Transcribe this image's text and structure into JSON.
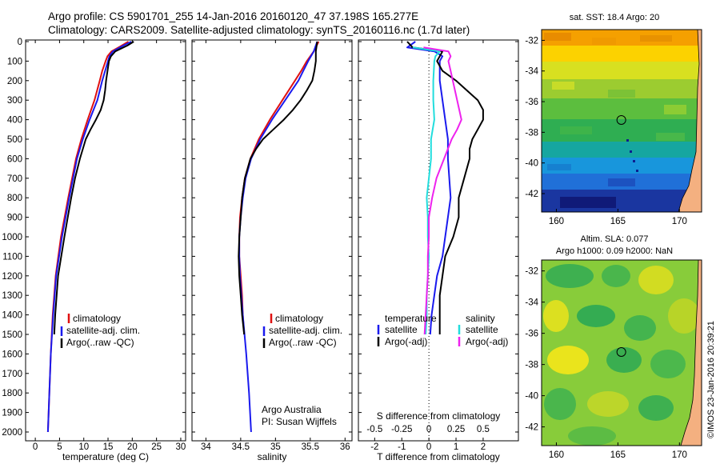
{
  "title_line1": "Argo profile: CS 5901701_255 14-Jan-2016 20160120_47 37.198S 165.277E",
  "title_line2": "Climatology: CARS2009. Satellite-adjusted climatology: synTS_20160116.nc (1.7d later)",
  "depth_ticks": [
    "0",
    "100",
    "200",
    "300",
    "400",
    "500",
    "600",
    "700",
    "800",
    "900",
    "1000",
    "1100",
    "1200",
    "1300",
    "1400",
    "1500",
    "1600",
    "1700",
    "1800",
    "1900",
    "2000"
  ],
  "colors": {
    "climatology": "#e01010",
    "satellite": "#1a1aee",
    "argo": "#000000",
    "cyan": "#22dddd",
    "magenta": "#ee22ee"
  },
  "chart_data": [
    {
      "type": "line",
      "id": "temperature",
      "xlabel": "temperature (deg C)",
      "xticks": [
        "0",
        "5",
        "10",
        "15",
        "20",
        "25",
        "30"
      ],
      "xlim": [
        -2,
        31
      ],
      "ylim": [
        2000,
        0
      ],
      "legend": [
        "climatology",
        "satellite-adj. clim.",
        "Argo(..raw -QC)"
      ],
      "series": [
        {
          "name": "climatology",
          "depth": [
            0,
            25,
            50,
            75,
            100,
            150,
            200,
            300,
            400,
            500,
            600,
            800,
            1000,
            1200,
            1400,
            1600,
            1800,
            2000
          ],
          "values": [
            19.2,
            17.5,
            15.7,
            14.9,
            14.5,
            13.8,
            13.3,
            12.2,
            10.8,
            9.5,
            8.4,
            6.8,
            5.3,
            4.2,
            3.6,
            3.2,
            2.9,
            2.6
          ]
        },
        {
          "name": "satellite-adj. clim.",
          "depth": [
            0,
            25,
            50,
            75,
            100,
            150,
            200,
            300,
            400,
            500,
            600,
            800,
            1000,
            1200,
            1400,
            1600,
            1800,
            2000
          ],
          "values": [
            19.8,
            17.8,
            16.0,
            15.3,
            15.0,
            14.4,
            13.8,
            12.8,
            11.2,
            9.8,
            8.6,
            7.0,
            5.5,
            4.3,
            3.7,
            3.2,
            2.9,
            2.6
          ]
        },
        {
          "name": "Argo(..raw -QC)",
          "depth": [
            0,
            20,
            50,
            75,
            100,
            150,
            200,
            250,
            300,
            350,
            400,
            450,
            500,
            600,
            700,
            800,
            900,
            1000,
            1200,
            1400,
            1500
          ],
          "values": [
            20.3,
            19.0,
            16.5,
            15.6,
            15.2,
            14.9,
            14.6,
            14.4,
            14.1,
            13.5,
            12.5,
            11.4,
            10.4,
            9.2,
            8.2,
            7.4,
            6.7,
            6.0,
            4.7,
            4.1,
            3.9
          ]
        }
      ]
    },
    {
      "type": "line",
      "id": "salinity",
      "xlabel": "salinity",
      "xticks": [
        "34",
        "34.5",
        "35",
        "35.5",
        "36"
      ],
      "xlim": [
        33.8,
        36.1
      ],
      "ylim": [
        2000,
        0
      ],
      "legend": [
        "climatology",
        "satellite-adj. clim.",
        "Argo(..raw -QC)"
      ],
      "annotation": [
        "Argo Australia",
        "PI: Susan Wijffels"
      ],
      "series": [
        {
          "name": "climatology",
          "depth": [
            0,
            50,
            100,
            150,
            200,
            300,
            400,
            500,
            600,
            700,
            800,
            900,
            1000,
            1100,
            1200,
            1300,
            1400,
            1500
          ],
          "values": [
            35.62,
            35.55,
            35.45,
            35.37,
            35.28,
            35.1,
            34.92,
            34.76,
            34.64,
            34.56,
            34.52,
            34.49,
            34.48,
            34.48,
            34.5,
            34.52,
            34.53,
            34.55
          ]
        },
        {
          "name": "satellite-adj. clim.",
          "depth": [
            0,
            50,
            100,
            150,
            200,
            300,
            400,
            500,
            600,
            700,
            800,
            900,
            1000,
            1100,
            1200,
            1300,
            1400,
            1600,
            1800,
            2000
          ],
          "values": [
            35.6,
            35.55,
            35.47,
            35.4,
            35.33,
            35.14,
            34.95,
            34.78,
            34.65,
            34.57,
            34.53,
            34.5,
            34.48,
            34.48,
            34.49,
            34.51,
            34.53,
            34.58,
            34.62,
            34.65
          ]
        },
        {
          "name": "Argo(..raw -QC)",
          "depth": [
            0,
            50,
            100,
            150,
            200,
            250,
            300,
            350,
            400,
            450,
            500,
            550,
            600,
            700,
            800,
            900,
            1000,
            1100,
            1200,
            1300,
            1400,
            1500
          ],
          "values": [
            35.6,
            35.58,
            35.58,
            35.56,
            35.53,
            35.45,
            35.36,
            35.25,
            35.12,
            34.97,
            34.82,
            34.72,
            34.64,
            34.56,
            34.52,
            34.5,
            34.48,
            34.47,
            34.48,
            34.5,
            34.52,
            34.55
          ]
        }
      ]
    },
    {
      "type": "line",
      "id": "difference",
      "xlabel": "T difference from climatology",
      "xlabel_top": "S difference from climatology",
      "xticks": [
        "-2",
        "-1",
        "0",
        "1",
        "2"
      ],
      "xticks_top": [
        "-0.5",
        "-0.25",
        "0",
        "0.25",
        "0.5"
      ],
      "xlim": [
        -2.6,
        3.3
      ],
      "ylim": [
        2000,
        0
      ],
      "legend_temp_title": "temperature",
      "legend_sal_title": "salinity",
      "legend_temp": [
        "satellite",
        "Argo(-adj)"
      ],
      "legend_sal": [
        "satellite",
        "Argo(-adj)"
      ],
      "series": [
        {
          "name": "T satellite",
          "depth": [
            0,
            30,
            50,
            75,
            100,
            200,
            300,
            400,
            500,
            600,
            800,
            1000,
            1100,
            1200,
            1300,
            1400,
            1500
          ],
          "values": [
            -0.5,
            -0.8,
            0.2,
            0.5,
            0.4,
            0.4,
            0.5,
            0.6,
            0.7,
            0.7,
            0.8,
            0.6,
            0.5,
            0.3,
            0.2,
            0.1,
            0.05
          ]
        },
        {
          "name": "T Argo(-adj)",
          "depth": [
            0,
            30,
            50,
            75,
            100,
            150,
            200,
            250,
            300,
            350,
            400,
            450,
            500,
            550,
            600,
            700,
            800,
            900,
            1000,
            1100,
            1200,
            1300,
            1400,
            1500
          ],
          "values": [
            -0.8,
            -0.6,
            0.5,
            0.4,
            0.3,
            0.5,
            1.0,
            1.4,
            1.8,
            2.0,
            2.0,
            1.8,
            1.6,
            1.5,
            1.5,
            1.3,
            1.1,
            1.1,
            0.9,
            0.6,
            0.5,
            0.4,
            0.4,
            0.4
          ]
        },
        {
          "name": "S satellite",
          "depth": [
            30,
            50,
            75,
            100,
            200,
            300,
            400,
            500,
            600,
            700,
            800,
            900,
            1000,
            1100,
            1200,
            1300,
            1400,
            1500
          ],
          "values": [
            -0.15,
            0.1,
            0.06,
            0.05,
            0.04,
            0.04,
            0.05,
            0.02,
            0.02,
            0.0,
            -0.02,
            -0.01,
            -0.01,
            0.0,
            -0.01,
            -0.02,
            -0.02,
            -0.03
          ]
        },
        {
          "name": "S Argo(-adj)",
          "depth": [
            30,
            50,
            75,
            100,
            150,
            200,
            250,
            300,
            350,
            400,
            450,
            500,
            600,
            700,
            800,
            900,
            1000,
            1100,
            1200,
            1300,
            1400,
            1500
          ],
          "values": [
            -0.05,
            0.18,
            0.2,
            0.18,
            0.2,
            0.22,
            0.24,
            0.26,
            0.28,
            0.3,
            0.26,
            0.21,
            0.14,
            0.07,
            0.03,
            0.0,
            0.0,
            -0.01,
            -0.01,
            -0.02,
            -0.03,
            -0.04
          ]
        }
      ]
    },
    {
      "type": "heatmap",
      "id": "sst_map",
      "title": "sat. SST: 18.4 Argo: 20",
      "xticks": [
        "160",
        "165",
        "170"
      ],
      "yticks": [
        "-32",
        "-34",
        "-36",
        "-38",
        "-40",
        "-42"
      ],
      "xlim": [
        158.8,
        171.8
      ],
      "ylim": [
        -43.2,
        -31.3
      ],
      "marker": {
        "lon": 165.277,
        "lat": -37.198
      }
    },
    {
      "type": "heatmap",
      "id": "sla_map",
      "title_line1": "Altim. SLA: 0.077",
      "title_line2": "Argo h1000: 0.09 h2000: NaN",
      "xticks": [
        "160",
        "165",
        "170"
      ],
      "yticks": [
        "-32",
        "-34",
        "-36",
        "-38",
        "-40",
        "-42"
      ],
      "xlim": [
        158.8,
        171.8
      ],
      "ylim": [
        -43.2,
        -31.3
      ],
      "marker": {
        "lon": 165.277,
        "lat": -37.198
      }
    }
  ],
  "credit": "©IMOS 23-Jan-2016 20:39:21"
}
